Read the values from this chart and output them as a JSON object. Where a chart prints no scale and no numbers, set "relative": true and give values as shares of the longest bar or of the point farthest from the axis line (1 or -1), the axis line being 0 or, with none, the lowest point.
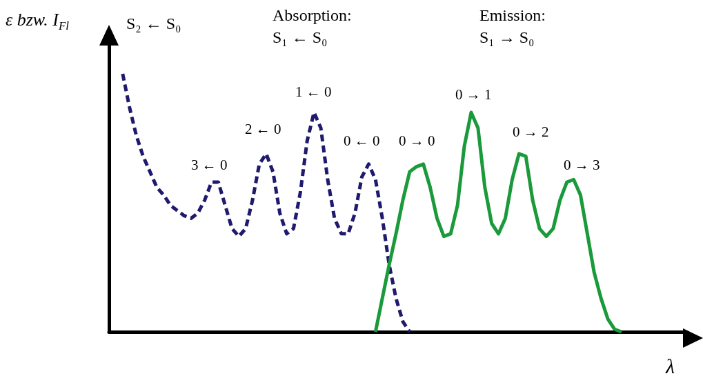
{
  "chart_data": {
    "type": "line",
    "relative": true,
    "xlabel": "λ",
    "ylabel": "ε bzw. I$_{Fl}$",
    "categories": [
      null,
      null,
      null,
      null,
      null,
      null,
      null,
      null,
      null,
      null,
      null,
      null,
      null,
      null,
      null,
      null,
      null,
      null,
      null,
      null,
      null,
      null,
      null,
      null,
      null,
      null,
      null,
      null,
      null,
      null,
      null,
      null,
      null,
      null,
      null,
      null,
      null,
      null,
      null,
      null,
      null,
      null,
      null,
      null,
      null,
      null,
      null,
      null,
      null,
      null,
      null,
      null,
      null,
      null,
      null,
      null,
      null,
      null,
      null,
      null,
      null,
      null,
      null,
      null,
      null,
      null,
      null,
      null,
      null,
      null,
      null,
      null,
      null,
      null,
      null,
      null,
      null,
      null,
      null,
      null,
      null,
      null,
      null,
      null,
      null
    ],
    "series": [
      {
        "color": "#1f1a6e",
        "line_style": "dashed",
        "values": [
          null,
          null,
          1.0,
          0.87,
          0.76,
          0.68,
          0.62,
          0.56,
          0.53,
          0.49,
          0.47,
          0.45,
          0.44,
          0.46,
          0.51,
          0.58,
          0.58,
          0.49,
          0.4,
          0.37,
          0.4,
          0.51,
          0.65,
          0.69,
          0.62,
          0.46,
          0.38,
          0.4,
          0.54,
          0.74,
          0.85,
          0.79,
          0.59,
          0.44,
          0.38,
          0.38,
          0.46,
          0.6,
          0.65,
          0.59,
          0.44,
          0.26,
          0.13,
          0.04,
          0,
          null,
          null,
          null,
          null,
          null,
          null,
          null,
          null,
          null,
          null,
          null,
          null,
          null,
          null,
          null,
          null,
          null,
          null,
          null,
          null,
          null,
          null,
          null,
          null,
          null,
          null,
          null,
          null,
          null,
          null,
          null,
          null,
          null,
          null,
          null,
          null,
          null,
          null,
          null,
          null
        ]
      },
      {
        "color": "#1a9a3a",
        "line_style": "solid",
        "values": [
          null,
          null,
          null,
          null,
          null,
          null,
          null,
          null,
          null,
          null,
          null,
          null,
          null,
          null,
          null,
          null,
          null,
          null,
          null,
          null,
          null,
          null,
          null,
          null,
          null,
          null,
          null,
          null,
          null,
          null,
          null,
          null,
          null,
          null,
          null,
          null,
          null,
          null,
          null,
          0,
          0.13,
          0.26,
          0.38,
          0.51,
          0.62,
          0.64,
          0.65,
          0.56,
          0.44,
          0.37,
          0.38,
          0.49,
          0.72,
          0.85,
          0.79,
          0.56,
          0.42,
          0.38,
          0.44,
          0.59,
          0.69,
          0.68,
          0.51,
          0.4,
          0.37,
          0.4,
          0.51,
          0.58,
          0.59,
          0.53,
          0.38,
          0.23,
          0.13,
          0.05,
          0.01,
          0,
          null,
          null,
          null,
          null,
          null,
          null,
          null,
          null,
          null
        ]
      }
    ],
    "annotations": [
      "S₂ ← S₀",
      "Absorption:",
      "S₁ ← S₀",
      "Emission:",
      "S₁ → S₀",
      "3 ← 0",
      "2 ← 0",
      "1 ← 0",
      "0 ← 0",
      "0 → 0",
      "0 → 1",
      "0 → 2",
      "0 → 3"
    ],
    "marker": "none",
    "grid": false
  }
}
